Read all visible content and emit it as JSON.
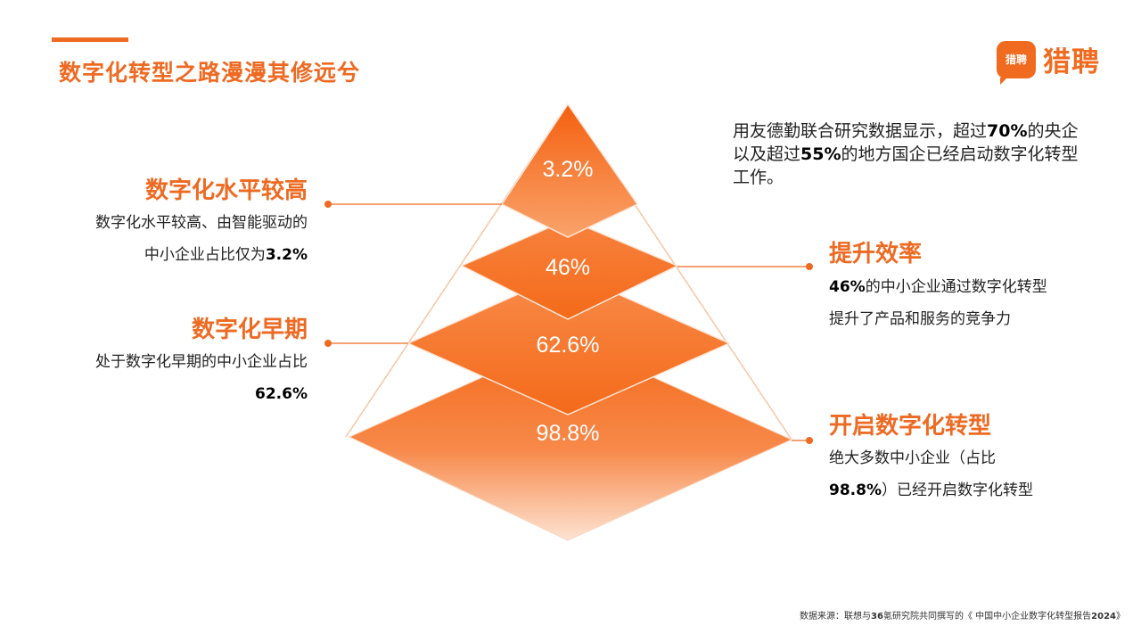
{
  "header": {
    "title": "数字化转型之路漫漫其修远兮"
  },
  "logo": {
    "badge_text": "猎聘",
    "brand_text": "猎聘",
    "color": "#f06b1f"
  },
  "colors": {
    "accent": "#ee6a22",
    "pyramid_top": "#f46a1a",
    "pyramid_light": "#fde0cc"
  },
  "pyramid": {
    "tiers": [
      {
        "label": "3.2%"
      },
      {
        "label": "46%"
      },
      {
        "label": "62.6%"
      },
      {
        "label": "98.8%"
      }
    ]
  },
  "intro": {
    "part1": "用友德勤联合研究数据显示，超过",
    "value1": "70%",
    "part2": "的央企以及超过",
    "value2": "55%",
    "part3": "的地方国企已经启动数字化转型工作。"
  },
  "blocks": {
    "high_level": {
      "title": "数字化水平较高",
      "line1": "数字化水平较高、由智能驱动的",
      "line2_prefix": "中小企业占比仅为",
      "line2_value": "3.2%"
    },
    "early_stage": {
      "title": "数字化早期",
      "line1": "处于数字化早期的中小企业占比",
      "value": "62.6%"
    },
    "efficiency": {
      "title": "提升效率",
      "value": "46%",
      "line1_suffix": "的中小企业通过数字化转型",
      "line2": "提升了产品和服务的竞争力"
    },
    "start": {
      "title": "开启数字化转型",
      "line1": "绝大多数中小企业（占比",
      "value": "98.8%",
      "line2_suffix": "）已经开启数字化转型"
    }
  },
  "footnote": {
    "prefix": "数据来源：联想与",
    "bold1": "36",
    "middle": "氪研究院共同撰写的《 中国中小企业数字化转型报告",
    "bold2": "2024",
    "suffix": "》"
  }
}
